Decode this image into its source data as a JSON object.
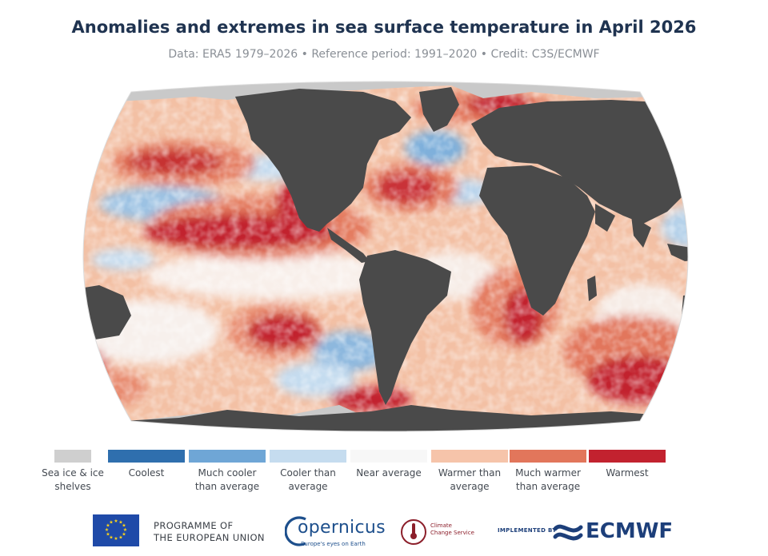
{
  "title": "Anomalies and extremes in sea surface temperature in April 2026",
  "subtitle": "Data: ERA5 1979–2026 • Reference period: 1991–2020 • Credit: C3S/ECMWF",
  "map": {
    "projection": "Robinson-like world map",
    "ocean_base_color": "#f3c0a4",
    "land_color": "#4a4a4a",
    "sea_ice_color": "#c9c9c9"
  },
  "legend": [
    {
      "label": "Sea ice & ice shelves",
      "color": "#cfcfcf"
    },
    {
      "label": "Coolest",
      "color": "#2f6fae"
    },
    {
      "label": "Much cooler than average",
      "color": "#6fa6d6"
    },
    {
      "label": "Cooler than average",
      "color": "#c5dcef"
    },
    {
      "label": "Near average",
      "color": "#f7f7f7"
    },
    {
      "label": "Warmer than average",
      "color": "#f6c4aa"
    },
    {
      "label": "Much warmer than average",
      "color": "#e2765b"
    },
    {
      "label": "Warmest",
      "color": "#c2222f"
    }
  ],
  "footer": {
    "programme_line1": "PROGRAMME OF",
    "programme_line2": "THE EUROPEAN UNION",
    "copernicus": "opernicus",
    "copernicus_tagline": "Europe's eyes on Earth",
    "c3s_line1": "Climate",
    "c3s_line2": "Change Service",
    "implemented_by": "IMPLEMENTED BY",
    "ecmwf": "ECMWF"
  }
}
